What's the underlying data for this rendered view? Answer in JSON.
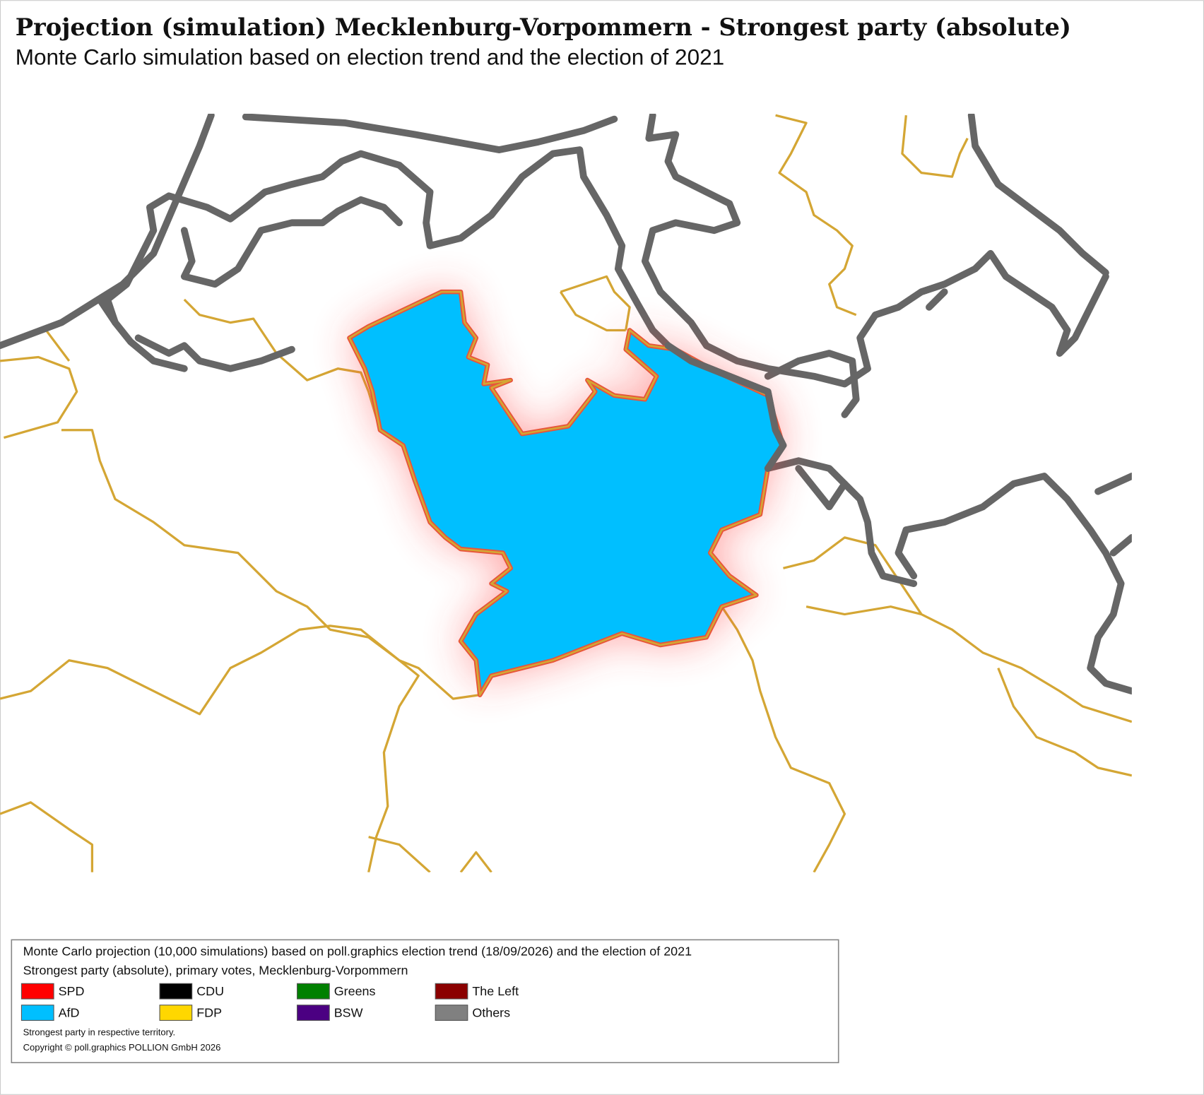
{
  "header": {
    "title": "Projection (simulation) Mecklenburg-Vorpommern - Strongest party (absolute)",
    "subtitle": "Monte Carlo simulation based on election trend and the election of 2021"
  },
  "legend": {
    "lines": [
      "Monte Carlo projection (10,000 simulations) based on poll.graphics election trend (18/09/2026) and the election of 2021",
      "Strongest party (absolute), primary votes, Mecklenburg-Vorpommern"
    ],
    "items": [
      {
        "name": "SPD",
        "color": "#ff0000"
      },
      {
        "name": "CDU",
        "color": "#000000"
      },
      {
        "name": "Greens",
        "color": "#008000"
      },
      {
        "name": "The Left",
        "color": "#8b0000"
      },
      {
        "name": "AfD",
        "color": "#00bfff"
      },
      {
        "name": "FDP",
        "color": "#ffd700"
      },
      {
        "name": "BSW",
        "color": "#4b0082"
      },
      {
        "name": "Others",
        "color": "#808080"
      }
    ],
    "notes": [
      "Strongest party in respective territory.",
      "Copyright © poll.graphics POLLION GmbH 2026"
    ]
  }
}
